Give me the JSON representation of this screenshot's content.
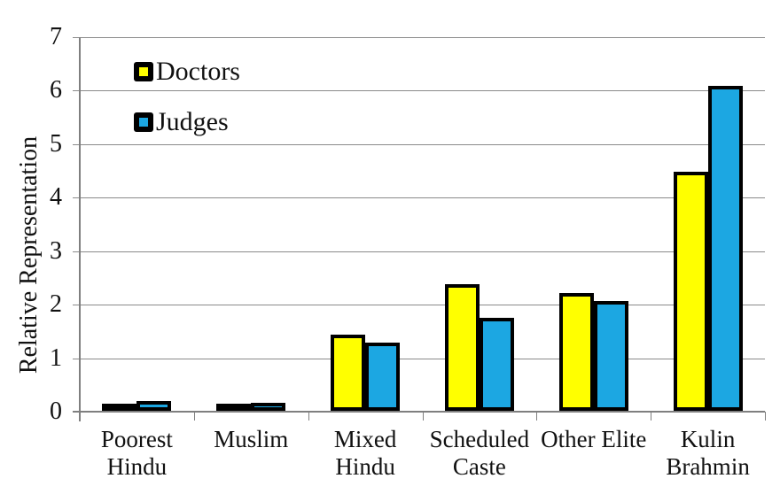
{
  "chart_data": {
    "type": "bar",
    "title": "",
    "xlabel": "",
    "ylabel": "Relative Representation",
    "ylim": [
      0,
      7
    ],
    "yticks": [
      0,
      1,
      2,
      3,
      4,
      5,
      6,
      7
    ],
    "grid": true,
    "legend_position": "top-left-inside",
    "categories": [
      "Poorest Hindu",
      "Muslim",
      "Mixed Hindu",
      "Scheduled Caste",
      "Other Elite",
      "Kulin Brahmin"
    ],
    "category_lines": [
      [
        "Poorest",
        "Hindu"
      ],
      [
        "Muslim"
      ],
      [
        "Mixed",
        "Hindu"
      ],
      [
        "Scheduled",
        "Caste"
      ],
      [
        "Other Elite"
      ],
      [
        "Kulin",
        "Brahmin"
      ]
    ],
    "series": [
      {
        "name": "Doctors",
        "color": "#FFFF00",
        "values": [
          0.07,
          0.12,
          1.42,
          2.37,
          2.2,
          4.47
        ]
      },
      {
        "name": "Judges",
        "color": "#1CA7E2",
        "values": [
          0.18,
          0.15,
          1.27,
          1.74,
          2.06,
          6.08
        ]
      }
    ],
    "bar_border_color": "#000000",
    "gridline_color": "#8A8A8A",
    "axis_color": "#7F7F7F",
    "text_color": "#111111",
    "background": "#FFFFFF"
  }
}
